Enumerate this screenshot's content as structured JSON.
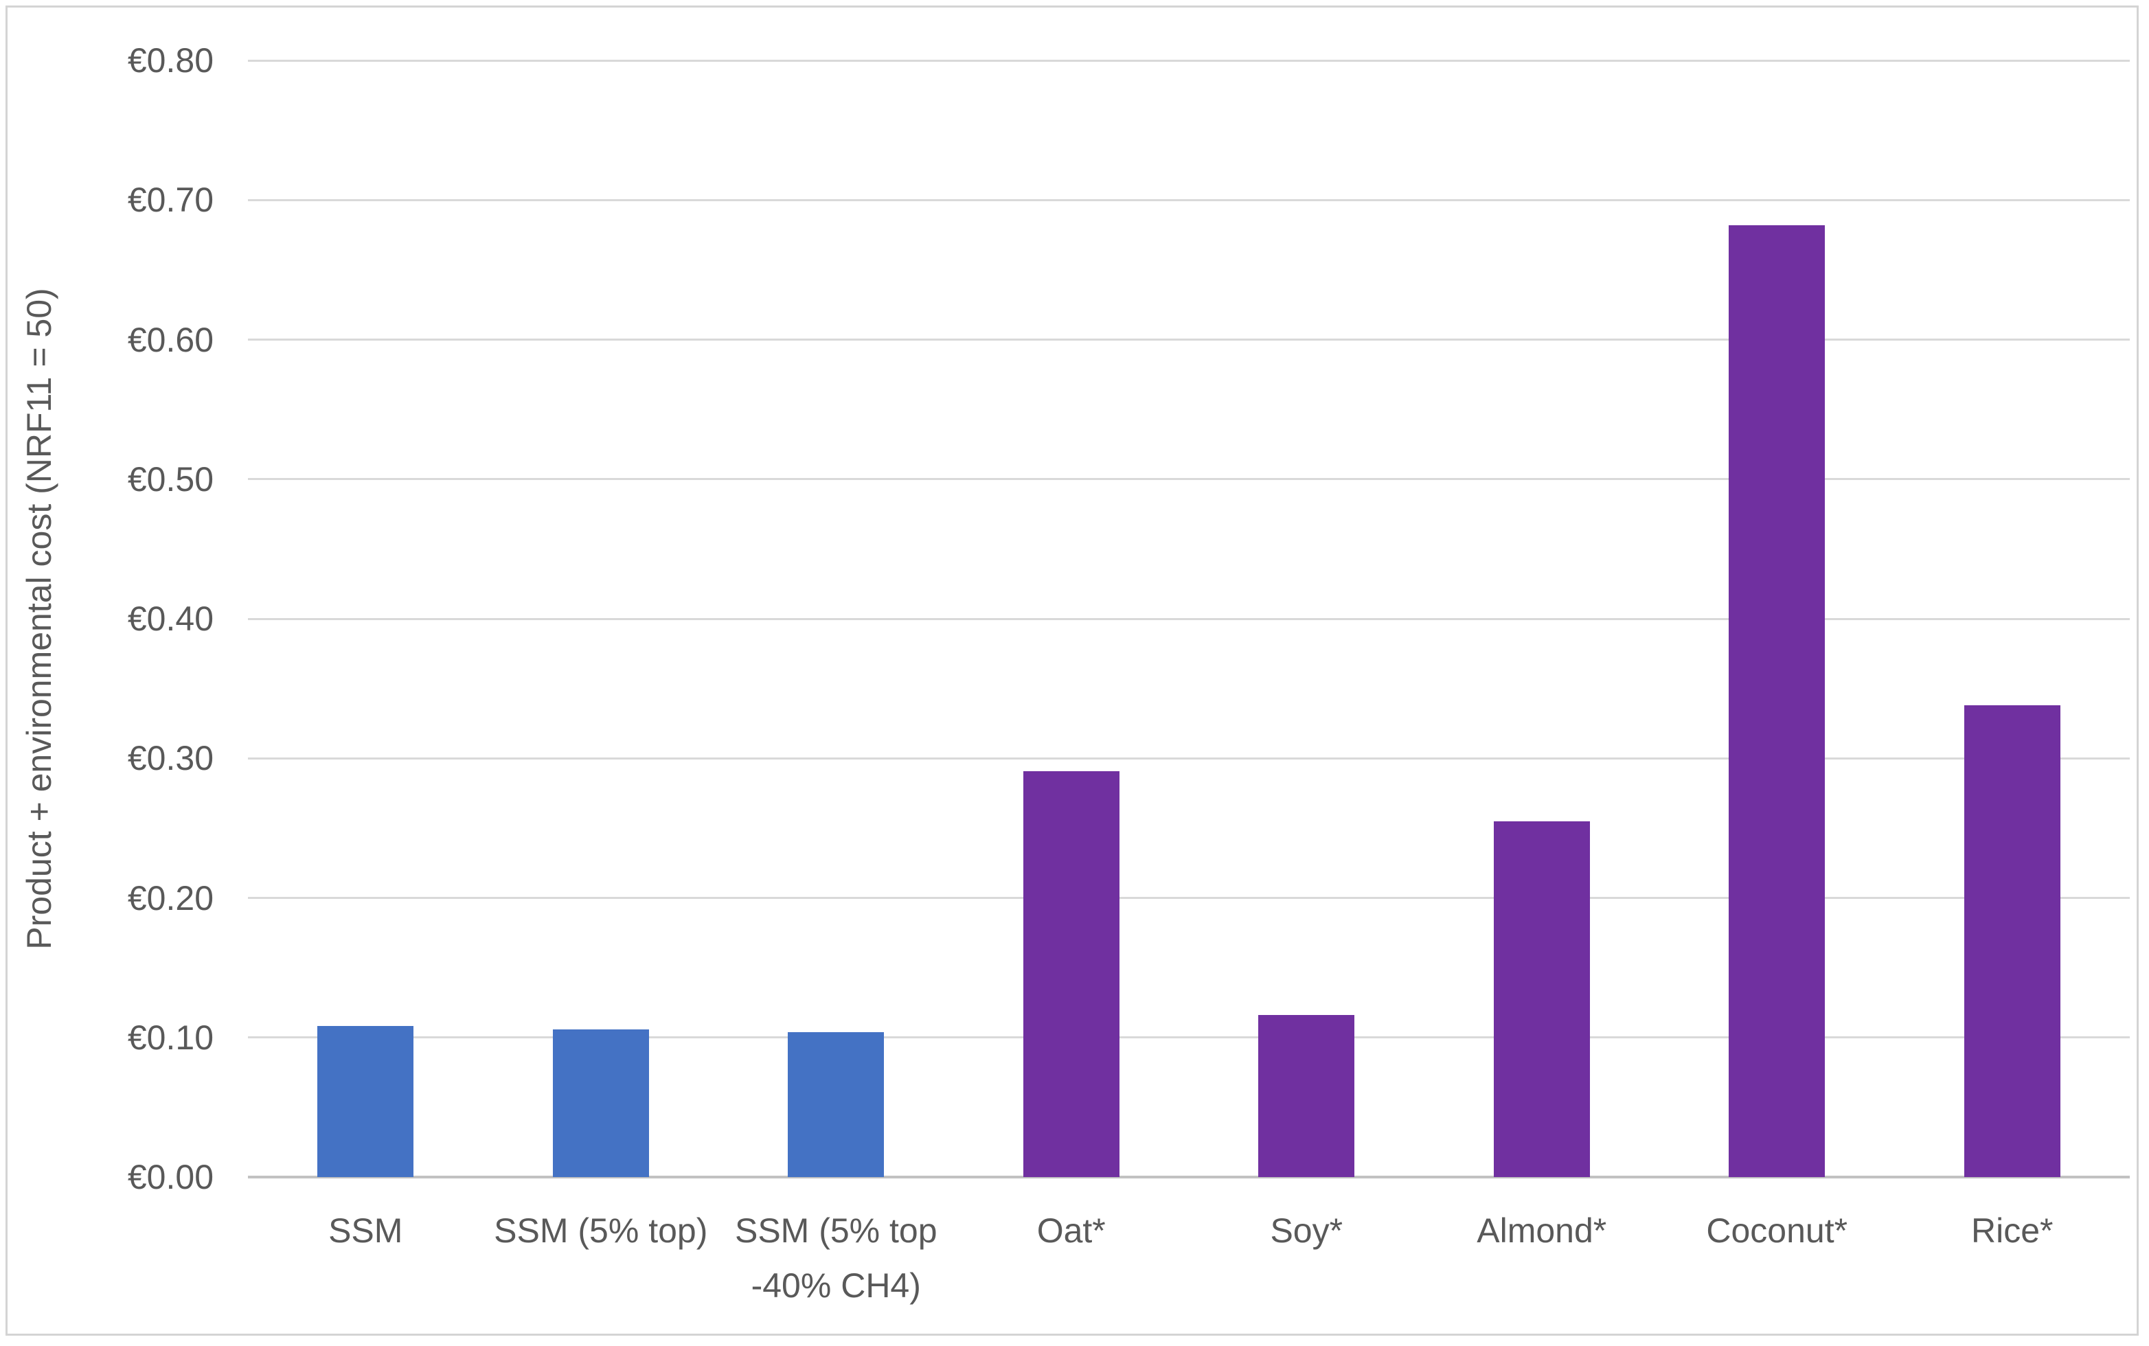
{
  "chart_data": {
    "type": "bar",
    "title": "",
    "xlabel": "",
    "ylabel": "Product + environmental cost (NRF11 = 50)",
    "categories": [
      "SSM",
      "SSM (5% top)",
      "SSM (5% top -40% CH4)",
      "Oat*",
      "Soy*",
      "Almond*",
      "Coconut*",
      "Rice*"
    ],
    "values": [
      0.108,
      0.106,
      0.104,
      0.291,
      0.116,
      0.255,
      0.682,
      0.338
    ],
    "bar_colors": [
      "#4472C4",
      "#4472C4",
      "#4472C4",
      "#7030A0",
      "#7030A0",
      "#7030A0",
      "#7030A0",
      "#7030A0"
    ],
    "ylim": [
      0,
      0.8
    ],
    "ytick_step": 0.1,
    "ytick_labels": [
      "€0.00",
      "€0.10",
      "€0.20",
      "€0.30",
      "€0.40",
      "€0.50",
      "€0.60",
      "€0.70",
      "€0.80"
    ],
    "grid": true,
    "legend_position": "none",
    "colors": {
      "series_blue": "#4472C4",
      "series_purple": "#7030A0",
      "gridline": "#D9D9D9",
      "axis_line": "#C2C2C2",
      "text": "#595959",
      "frame_border": "#D4D4D4",
      "background": "#FFFFFF"
    }
  }
}
